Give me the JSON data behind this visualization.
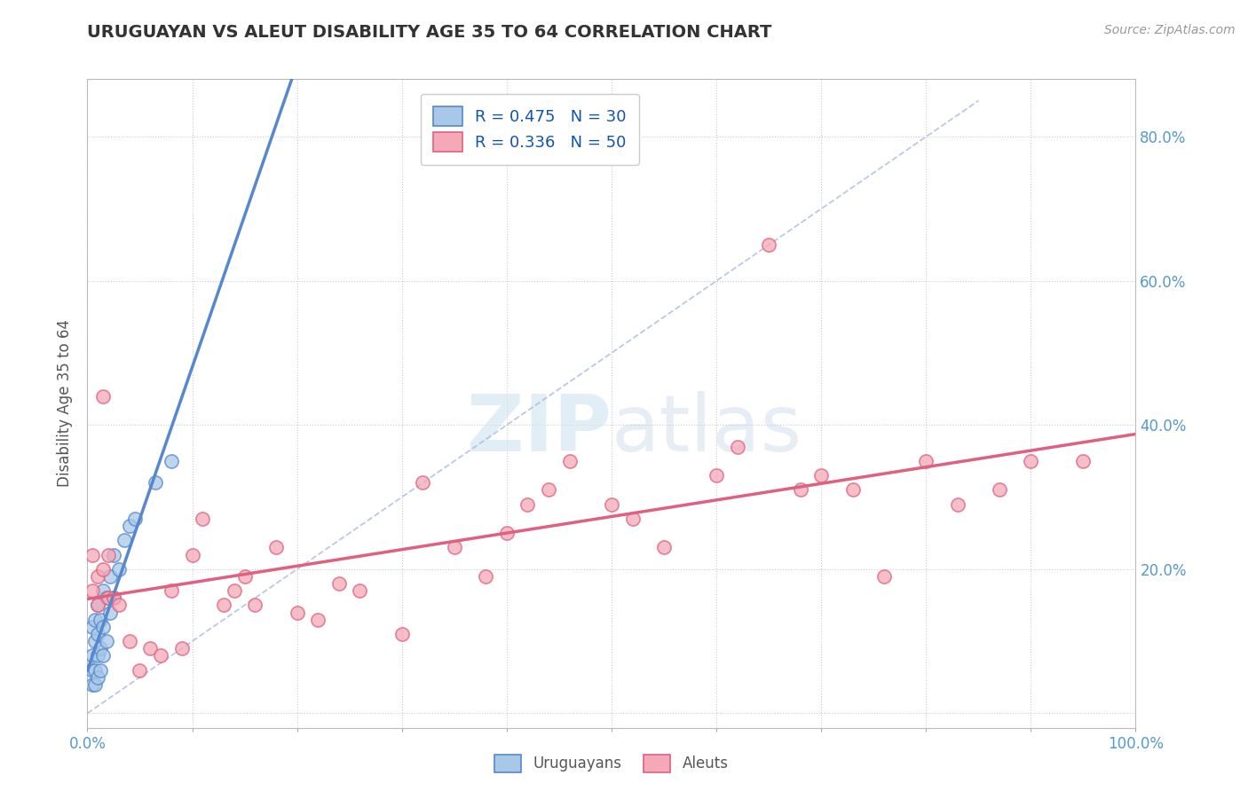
{
  "title": "URUGUAYAN VS ALEUT DISABILITY AGE 35 TO 64 CORRELATION CHART",
  "source": "Source: ZipAtlas.com",
  "ylabel": "Disability Age 35 to 64",
  "xlim": [
    0.0,
    1.0
  ],
  "ylim": [
    -0.02,
    0.88
  ],
  "legend_label1": "R = 0.475   N = 30",
  "legend_label2": "R = 0.336   N = 50",
  "color_uruguayan": "#A8C8E8",
  "color_aleut": "#F4A8B8",
  "line_color_uruguayan": "#5588CC",
  "line_color_aleut": "#E06080",
  "background_color": "#FFFFFF",
  "uruguayan_x": [
    0.005,
    0.005,
    0.005,
    0.005,
    0.007,
    0.007,
    0.007,
    0.007,
    0.01,
    0.01,
    0.01,
    0.01,
    0.012,
    0.012,
    0.012,
    0.015,
    0.015,
    0.015,
    0.018,
    0.018,
    0.022,
    0.022,
    0.025,
    0.025,
    0.03,
    0.035,
    0.04,
    0.045,
    0.065,
    0.08
  ],
  "uruguayan_y": [
    0.04,
    0.06,
    0.08,
    0.12,
    0.04,
    0.06,
    0.1,
    0.13,
    0.05,
    0.08,
    0.11,
    0.15,
    0.06,
    0.09,
    0.13,
    0.08,
    0.12,
    0.17,
    0.1,
    0.16,
    0.14,
    0.19,
    0.16,
    0.22,
    0.2,
    0.24,
    0.26,
    0.27,
    0.32,
    0.35
  ],
  "aleut_x": [
    0.005,
    0.005,
    0.01,
    0.01,
    0.015,
    0.015,
    0.02,
    0.02,
    0.025,
    0.03,
    0.04,
    0.05,
    0.06,
    0.07,
    0.08,
    0.09,
    0.1,
    0.11,
    0.13,
    0.14,
    0.15,
    0.16,
    0.18,
    0.2,
    0.22,
    0.24,
    0.26,
    0.3,
    0.32,
    0.35,
    0.38,
    0.4,
    0.42,
    0.44,
    0.46,
    0.5,
    0.52,
    0.55,
    0.6,
    0.62,
    0.65,
    0.68,
    0.7,
    0.73,
    0.76,
    0.8,
    0.83,
    0.87,
    0.9,
    0.95
  ],
  "aleut_y": [
    0.17,
    0.22,
    0.15,
    0.19,
    0.44,
    0.2,
    0.16,
    0.22,
    0.16,
    0.15,
    0.1,
    0.06,
    0.09,
    0.08,
    0.17,
    0.09,
    0.22,
    0.27,
    0.15,
    0.17,
    0.19,
    0.15,
    0.23,
    0.14,
    0.13,
    0.18,
    0.17,
    0.11,
    0.32,
    0.23,
    0.19,
    0.25,
    0.29,
    0.31,
    0.35,
    0.29,
    0.27,
    0.23,
    0.33,
    0.37,
    0.65,
    0.31,
    0.33,
    0.31,
    0.19,
    0.35,
    0.29,
    0.31,
    0.35,
    0.35
  ]
}
